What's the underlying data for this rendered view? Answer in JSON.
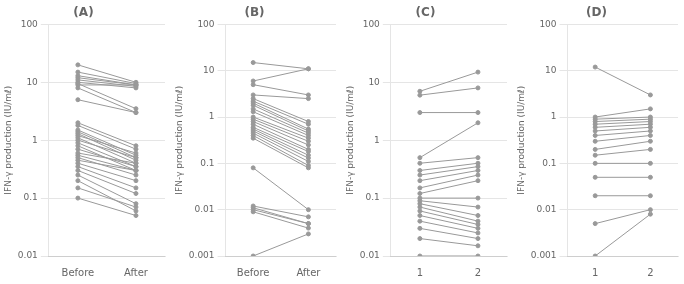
{
  "chart_data": [
    {
      "type": "line",
      "title": "(A)",
      "ylabel": "IFN-γ production (IU/mℓ)",
      "categories": [
        "Before",
        "After"
      ],
      "series": [
        {
          "values": [
            20,
            10
          ]
        },
        {
          "values": [
            15,
            9.5
          ]
        },
        {
          "values": [
            13,
            9
          ]
        },
        {
          "values": [
            12,
            9
          ]
        },
        {
          "values": [
            11,
            8.5
          ]
        },
        {
          "values": [
            10,
            8
          ]
        },
        {
          "values": [
            9.5,
            3.5
          ]
        },
        {
          "values": [
            9,
            9
          ]
        },
        {
          "values": [
            8,
            3
          ]
        },
        {
          "values": [
            5,
            3
          ]
        },
        {
          "values": [
            2.0,
            0.8
          ]
        },
        {
          "values": [
            1.8,
            0.7
          ]
        },
        {
          "values": [
            1.5,
            0.55
          ]
        },
        {
          "values": [
            1.4,
            0.5
          ]
        },
        {
          "values": [
            1.3,
            0.45
          ]
        },
        {
          "values": [
            1.2,
            0.6
          ]
        },
        {
          "values": [
            1.1,
            0.4
          ]
        },
        {
          "values": [
            1.0,
            0.5
          ]
        },
        {
          "values": [
            0.9,
            0.35
          ]
        },
        {
          "values": [
            0.8,
            0.3
          ]
        },
        {
          "values": [
            0.7,
            0.35
          ]
        },
        {
          "values": [
            0.6,
            0.4
          ]
        },
        {
          "values": [
            0.55,
            0.3
          ]
        },
        {
          "values": [
            0.5,
            0.25
          ]
        },
        {
          "values": [
            0.45,
            0.3
          ]
        },
        {
          "values": [
            0.4,
            0.2
          ]
        },
        {
          "values": [
            0.35,
            0.15
          ]
        },
        {
          "values": [
            0.3,
            0.12
          ]
        },
        {
          "values": [
            0.25,
            0.08
          ]
        },
        {
          "values": [
            0.2,
            0.06
          ]
        },
        {
          "values": [
            0.15,
            0.07
          ]
        },
        {
          "values": [
            0.1,
            0.05
          ]
        }
      ],
      "ylim": [
        0.01,
        100
      ],
      "yticks": [
        0.01,
        0.1,
        1,
        10,
        100
      ],
      "log": "y",
      "grid": true,
      "color": "#999999",
      "marker": "circle"
    },
    {
      "type": "line",
      "title": "(B)",
      "ylabel": "IFN-γ production (IU/mℓ)",
      "categories": [
        "Before",
        "After"
      ],
      "series": [
        {
          "values": [
            15,
            11
          ]
        },
        {
          "values": [
            6,
            11
          ]
        },
        {
          "values": [
            5,
            3
          ]
        },
        {
          "values": [
            3,
            2.5
          ]
        },
        {
          "values": [
            2.5,
            0.8
          ]
        },
        {
          "values": [
            2.2,
            0.7
          ]
        },
        {
          "values": [
            2.0,
            0.55
          ]
        },
        {
          "values": [
            1.8,
            0.5
          ]
        },
        {
          "values": [
            1.5,
            0.45
          ]
        },
        {
          "values": [
            1.3,
            0.4
          ]
        },
        {
          "values": [
            1.0,
            0.35
          ]
        },
        {
          "values": [
            0.9,
            0.3
          ]
        },
        {
          "values": [
            0.8,
            0.25
          ]
        },
        {
          "values": [
            0.7,
            0.2
          ]
        },
        {
          "values": [
            0.6,
            0.18
          ]
        },
        {
          "values": [
            0.55,
            0.15
          ]
        },
        {
          "values": [
            0.5,
            0.13
          ]
        },
        {
          "values": [
            0.45,
            0.11
          ]
        },
        {
          "values": [
            0.4,
            0.09
          ]
        },
        {
          "values": [
            0.35,
            0.08
          ]
        },
        {
          "values": [
            0.08,
            0.01
          ]
        },
        {
          "values": [
            0.012,
            0.007
          ]
        },
        {
          "values": [
            0.011,
            0.005
          ]
        },
        {
          "values": [
            0.01,
            0.005
          ]
        },
        {
          "values": [
            0.009,
            0.004
          ]
        },
        {
          "values": [
            0.001,
            0.003
          ]
        }
      ],
      "ylim": [
        0.001,
        100
      ],
      "yticks": [
        0.001,
        0.01,
        0.1,
        1,
        10,
        100
      ],
      "log": "y",
      "grid": true,
      "color": "#999999",
      "marker": "circle"
    },
    {
      "type": "line",
      "title": "(C)",
      "ylabel": "IFN-γ production (IU/mℓ)",
      "categories": [
        "1",
        "2"
      ],
      "series": [
        {
          "values": [
            7,
            15
          ]
        },
        {
          "values": [
            6,
            8
          ]
        },
        {
          "values": [
            3,
            3
          ]
        },
        {
          "values": [
            0.5,
            2
          ]
        },
        {
          "values": [
            0.4,
            0.5
          ]
        },
        {
          "values": [
            0.3,
            0.4
          ]
        },
        {
          "values": [
            0.25,
            0.35
          ]
        },
        {
          "values": [
            0.2,
            0.3
          ]
        },
        {
          "values": [
            0.15,
            0.25
          ]
        },
        {
          "values": [
            0.12,
            0.2
          ]
        },
        {
          "values": [
            0.1,
            0.1
          ]
        },
        {
          "values": [
            0.09,
            0.07
          ]
        },
        {
          "values": [
            0.08,
            0.05
          ]
        },
        {
          "values": [
            0.07,
            0.04
          ]
        },
        {
          "values": [
            0.06,
            0.035
          ]
        },
        {
          "values": [
            0.05,
            0.03
          ]
        },
        {
          "values": [
            0.04,
            0.025
          ]
        },
        {
          "values": [
            0.03,
            0.02
          ]
        },
        {
          "values": [
            0.02,
            0.015
          ]
        },
        {
          "values": [
            0.01,
            0.01
          ]
        }
      ],
      "ylim": [
        0.01,
        100
      ],
      "yticks": [
        0.01,
        0.1,
        1,
        10,
        100
      ],
      "log": "y",
      "grid": true,
      "color": "#999999",
      "marker": "circle"
    },
    {
      "type": "line",
      "title": "(D)",
      "ylabel": "IFN-γ production (IU/mℓ)",
      "categories": [
        "1",
        "2"
      ],
      "series": [
        {
          "values": [
            12,
            3
          ]
        },
        {
          "values": [
            1.0,
            1.5
          ]
        },
        {
          "values": [
            0.9,
            1.0
          ]
        },
        {
          "values": [
            0.8,
            0.9
          ]
        },
        {
          "values": [
            0.7,
            0.8
          ]
        },
        {
          "values": [
            0.6,
            0.7
          ]
        },
        {
          "values": [
            0.5,
            0.6
          ]
        },
        {
          "values": [
            0.4,
            0.5
          ]
        },
        {
          "values": [
            0.3,
            0.4
          ]
        },
        {
          "values": [
            0.2,
            0.3
          ]
        },
        {
          "values": [
            0.15,
            0.2
          ]
        },
        {
          "values": [
            0.1,
            0.1
          ]
        },
        {
          "values": [
            0.05,
            0.05
          ]
        },
        {
          "values": [
            0.02,
            0.02
          ]
        },
        {
          "values": [
            0.005,
            0.01
          ]
        },
        {
          "values": [
            0.001,
            0.008
          ]
        }
      ],
      "ylim": [
        0.001,
        100
      ],
      "yticks": [
        0.001,
        0.01,
        0.1,
        1,
        10,
        100
      ],
      "log": "y",
      "grid": true,
      "color": "#999999",
      "marker": "circle"
    }
  ]
}
